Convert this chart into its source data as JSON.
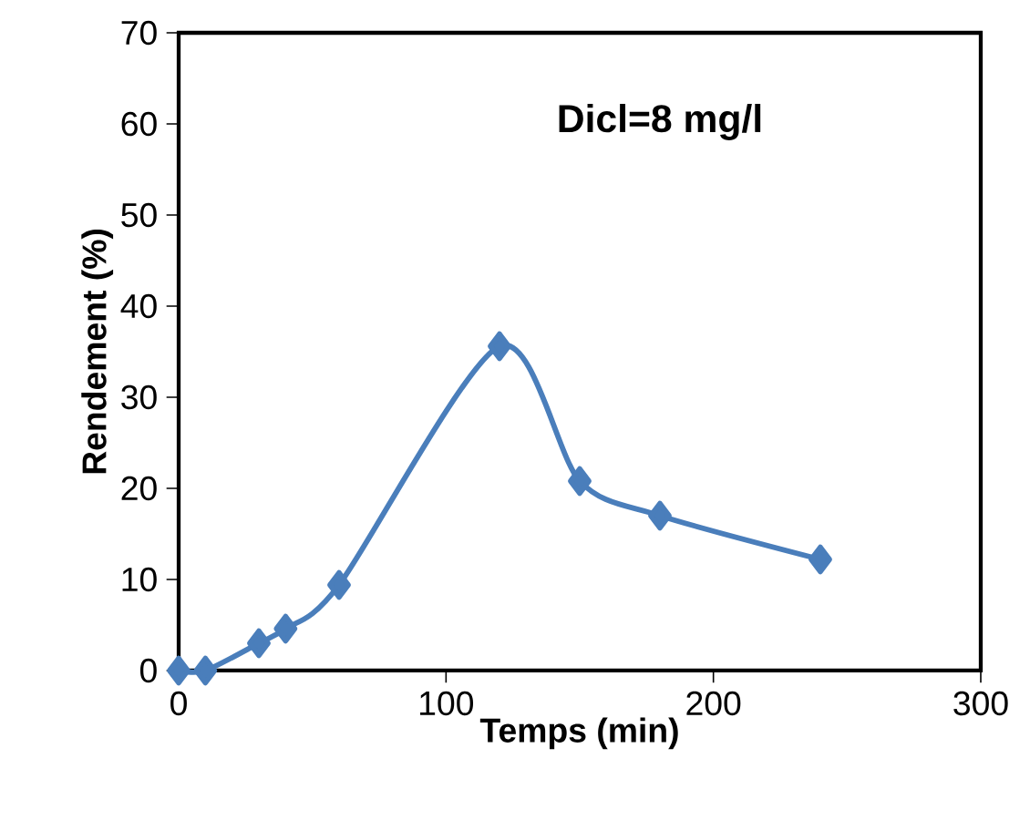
{
  "chart_data": {
    "type": "line",
    "xlabel": "Temps (min)",
    "ylabel": "Rendement (%)",
    "annotations": [
      "Dicl=8 mg/l"
    ],
    "x": [
      0,
      10,
      30,
      40,
      60,
      120,
      150,
      180,
      240
    ],
    "series": [
      {
        "color": "#4a7ebb",
        "values": [
          0,
          0,
          3,
          4.6,
          9.4,
          35.6,
          20.8,
          17,
          12.2
        ]
      }
    ],
    "xlim": [
      0,
      300
    ],
    "xticks": [
      0,
      100,
      200,
      300
    ],
    "ylim": [
      0,
      70
    ],
    "yticks": [
      0,
      10,
      20,
      30,
      40,
      50,
      60,
      70
    ],
    "marker": "diamond",
    "line_style": "solid"
  }
}
